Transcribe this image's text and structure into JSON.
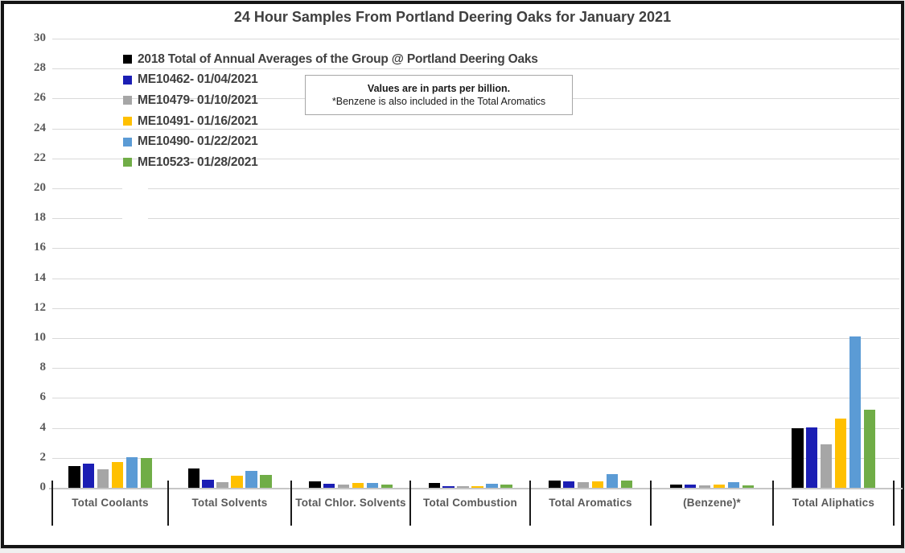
{
  "title": "24 Hour Samples From Portland Deering Oaks for January 2021",
  "note": {
    "line1": "Values are in parts per billion.",
    "line2": "*Benzene is also included in the Total Aromatics"
  },
  "colors": {
    "series_black": "#000000",
    "series_dark_blue": "#1b1eb4",
    "series_gray": "#a6a6a6",
    "series_yellow": "#ffc000",
    "series_light_blue": "#5b9bd5",
    "series_green": "#70ad47",
    "gridline": "#d9d9d9",
    "text_dark": "#404040",
    "text_axis": "#595959"
  },
  "chart_data": {
    "type": "bar",
    "title": "24 Hour Samples From Portland Deering Oaks for January 2021",
    "xlabel": "",
    "ylabel": "",
    "units": "parts per billion",
    "ylim": [
      0,
      30
    ],
    "ytick_step": 2,
    "ytick_labels": [
      "0",
      "2",
      "4",
      "6",
      "8",
      "10",
      "12",
      "14",
      "16",
      "18",
      "20",
      "22",
      "24",
      "26",
      "28",
      "30"
    ],
    "grid": true,
    "legend_position": "top-left-inside",
    "categories": [
      "Total Coolants",
      "Total Solvents",
      "Total Chlor. Solvents",
      "Total Combustion",
      "Total Aromatics",
      "(Benzene)*",
      "Total Aliphatics"
    ],
    "series": [
      {
        "name": "2018 Total of Annual Averages of the Group @ Portland Deering Oaks",
        "color": "#000000",
        "values": [
          1.45,
          1.3,
          0.45,
          0.3,
          0.5,
          0.2,
          4.0
        ]
      },
      {
        "name": "ME10462- 01/04/2021",
        "color": "#1b1eb4",
        "values": [
          1.6,
          0.55,
          0.25,
          0.1,
          0.45,
          0.2,
          4.05
        ]
      },
      {
        "name": "ME10479- 01/10/2021",
        "color": "#a6a6a6",
        "values": [
          1.25,
          0.4,
          0.2,
          0.1,
          0.35,
          0.15,
          2.9
        ]
      },
      {
        "name": "ME10491- 01/16/2021",
        "color": "#ffc000",
        "values": [
          1.7,
          0.8,
          0.3,
          0.1,
          0.45,
          0.2,
          4.6
        ]
      },
      {
        "name": "ME10490- 01/22/2021",
        "color": "#5b9bd5",
        "values": [
          2.05,
          1.15,
          0.3,
          0.25,
          0.9,
          0.4,
          10.1
        ]
      },
      {
        "name": "ME10523- 01/28/2021",
        "color": "#70ad47",
        "values": [
          2.0,
          0.85,
          0.22,
          0.2,
          0.5,
          0.18,
          5.2
        ]
      }
    ]
  }
}
